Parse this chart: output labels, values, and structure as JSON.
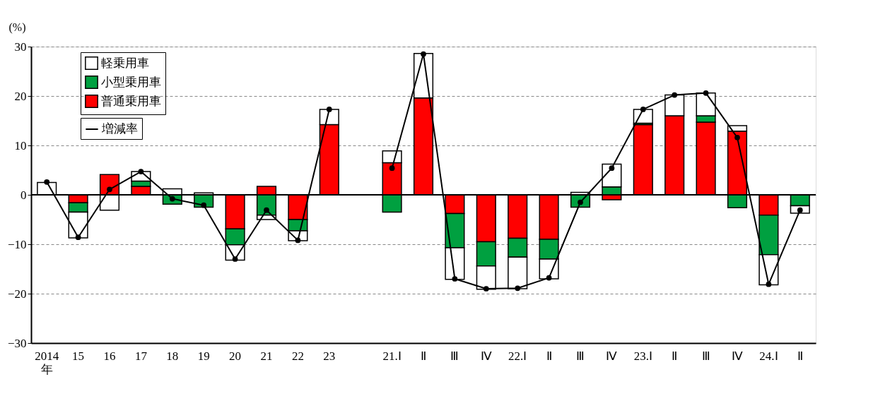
{
  "chart_data": {
    "type": "bar",
    "stacked": true,
    "ylabel": "(%)",
    "categories": [
      "2014\n年",
      "15",
      "16",
      "17",
      "18",
      "19",
      "20",
      "21",
      "22",
      "23",
      null,
      "21.Ⅰ",
      "Ⅱ",
      "Ⅲ",
      "Ⅳ",
      "22.Ⅰ",
      "Ⅱ",
      "Ⅲ",
      "Ⅳ",
      "23.Ⅰ",
      "Ⅱ",
      "Ⅲ",
      "Ⅳ",
      "24.Ⅰ",
      "Ⅱ"
    ],
    "series": [
      {
        "name": "普通乗用車",
        "color": "#ff0000",
        "values": [
          null,
          -1.6,
          4.1,
          1.7,
          null,
          null,
          -6.9,
          1.7,
          -5.0,
          14.2,
          null,
          6.5,
          19.6,
          -3.8,
          -9.5,
          -8.8,
          -9.0,
          null,
          -1.0,
          14.2,
          16.0,
          14.7,
          12.9,
          -4.1,
          null
        ]
      },
      {
        "name": "小型乗用車",
        "color": "#00a040",
        "values": [
          null,
          -1.9,
          null,
          1.1,
          -1.9,
          -2.5,
          -3.2,
          -4.1,
          -2.3,
          null,
          null,
          -3.5,
          null,
          -6.9,
          -4.9,
          -3.8,
          -4.0,
          -2.5,
          1.6,
          0.3,
          null,
          1.3,
          -2.6,
          -8.0,
          -2.2
        ]
      },
      {
        "name": "軽乗用車",
        "color": "#ffffff",
        "values": [
          2.5,
          -5.2,
          -3.1,
          1.9,
          1.2,
          0.4,
          -3.1,
          -0.9,
          -2.0,
          3.1,
          null,
          2.4,
          9.0,
          -6.4,
          -4.7,
          -6.4,
          -4.0,
          0.5,
          4.6,
          2.8,
          4.2,
          4.6,
          1.1,
          -6.1,
          -1.5
        ]
      },
      {
        "name": "増減率",
        "type": "line",
        "color": "#000000",
        "marker": "circle",
        "values": [
          2.6,
          -8.6,
          1.1,
          4.7,
          -0.8,
          -2.1,
          -13.0,
          -3.1,
          -9.2,
          17.3,
          null,
          5.4,
          28.5,
          -17.0,
          -19.0,
          -18.9,
          -16.8,
          -1.5,
          5.4,
          17.3,
          20.2,
          20.6,
          11.6,
          -18.1,
          -3.1
        ]
      }
    ],
    "ylim": [
      -30,
      30
    ],
    "yticks": [
      -30,
      -20,
      -10,
      0,
      10,
      20,
      30
    ],
    "grid": "y",
    "legend": "top left",
    "ref_lines": [
      {
        "axis": "y",
        "value": 0,
        "color": "#000000"
      }
    ]
  }
}
